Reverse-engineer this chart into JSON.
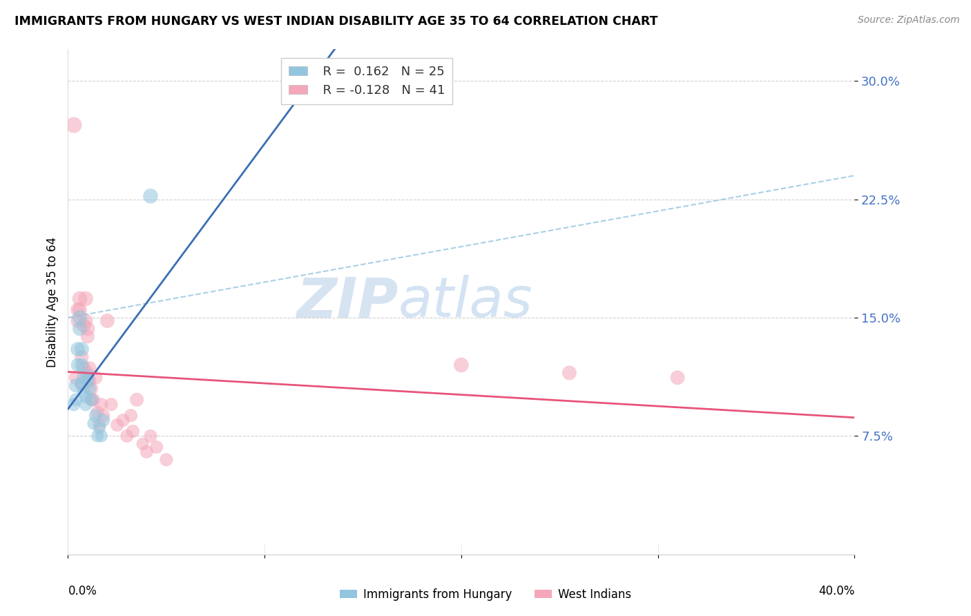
{
  "title": "IMMIGRANTS FROM HUNGARY VS WEST INDIAN DISABILITY AGE 35 TO 64 CORRELATION CHART",
  "source": "Source: ZipAtlas.com",
  "ylabel": "Disability Age 35 to 64",
  "yticks": [
    0.075,
    0.15,
    0.225,
    0.3
  ],
  "ytick_labels": [
    "7.5%",
    "15.0%",
    "22.5%",
    "30.0%"
  ],
  "xmin": 0.0,
  "xmax": 0.4,
  "ymin": 0.0,
  "ymax": 0.32,
  "color_blue": "#92c5de",
  "color_pink": "#f4a7b9",
  "line_blue": "#3a6db5",
  "line_pink": "#e8547a",
  "dash_color": "#92c5de",
  "watermark_zip": "ZIP",
  "watermark_atlas": "atlas",
  "hungary_points": [
    [
      0.003,
      0.095
    ],
    [
      0.004,
      0.107
    ],
    [
      0.004,
      0.098
    ],
    [
      0.005,
      0.13
    ],
    [
      0.005,
      0.12
    ],
    [
      0.006,
      0.15
    ],
    [
      0.006,
      0.143
    ],
    [
      0.007,
      0.108
    ],
    [
      0.007,
      0.12
    ],
    [
      0.007,
      0.13
    ],
    [
      0.008,
      0.112
    ],
    [
      0.008,
      0.103
    ],
    [
      0.009,
      0.095
    ],
    [
      0.009,
      0.1
    ],
    [
      0.01,
      0.11
    ],
    [
      0.01,
      0.113
    ],
    [
      0.011,
      0.105
    ],
    [
      0.012,
      0.098
    ],
    [
      0.013,
      0.083
    ],
    [
      0.014,
      0.088
    ],
    [
      0.015,
      0.075
    ],
    [
      0.016,
      0.08
    ],
    [
      0.017,
      0.075
    ],
    [
      0.018,
      0.085
    ],
    [
      0.042,
      0.227
    ]
  ],
  "westindian_points": [
    [
      0.003,
      0.272
    ],
    [
      0.004,
      0.112
    ],
    [
      0.005,
      0.155
    ],
    [
      0.005,
      0.148
    ],
    [
      0.006,
      0.162
    ],
    [
      0.006,
      0.155
    ],
    [
      0.007,
      0.108
    ],
    [
      0.007,
      0.125
    ],
    [
      0.008,
      0.145
    ],
    [
      0.008,
      0.118
    ],
    [
      0.009,
      0.162
    ],
    [
      0.009,
      0.148
    ],
    [
      0.01,
      0.143
    ],
    [
      0.01,
      0.138
    ],
    [
      0.01,
      0.115
    ],
    [
      0.011,
      0.11
    ],
    [
      0.011,
      0.118
    ],
    [
      0.012,
      0.105
    ],
    [
      0.012,
      0.098
    ],
    [
      0.013,
      0.098
    ],
    [
      0.014,
      0.112
    ],
    [
      0.015,
      0.09
    ],
    [
      0.016,
      0.082
    ],
    [
      0.017,
      0.095
    ],
    [
      0.018,
      0.088
    ],
    [
      0.02,
      0.148
    ],
    [
      0.022,
      0.095
    ],
    [
      0.025,
      0.082
    ],
    [
      0.028,
      0.085
    ],
    [
      0.03,
      0.075
    ],
    [
      0.032,
      0.088
    ],
    [
      0.033,
      0.078
    ],
    [
      0.035,
      0.098
    ],
    [
      0.038,
      0.07
    ],
    [
      0.04,
      0.065
    ],
    [
      0.042,
      0.075
    ],
    [
      0.045,
      0.068
    ],
    [
      0.05,
      0.06
    ],
    [
      0.2,
      0.12
    ],
    [
      0.255,
      0.115
    ],
    [
      0.31,
      0.112
    ]
  ],
  "hungary_sizes": [
    55,
    60,
    55,
    65,
    60,
    70,
    65,
    60,
    60,
    65,
    60,
    55,
    55,
    55,
    60,
    60,
    55,
    55,
    50,
    55,
    50,
    50,
    50,
    55,
    70
  ],
  "westindian_sizes": [
    80,
    60,
    65,
    65,
    70,
    65,
    60,
    60,
    65,
    60,
    70,
    65,
    65,
    60,
    60,
    60,
    60,
    55,
    55,
    55,
    60,
    55,
    55,
    55,
    55,
    65,
    55,
    55,
    55,
    55,
    55,
    55,
    60,
    50,
    55,
    55,
    55,
    55,
    70,
    65,
    65
  ]
}
